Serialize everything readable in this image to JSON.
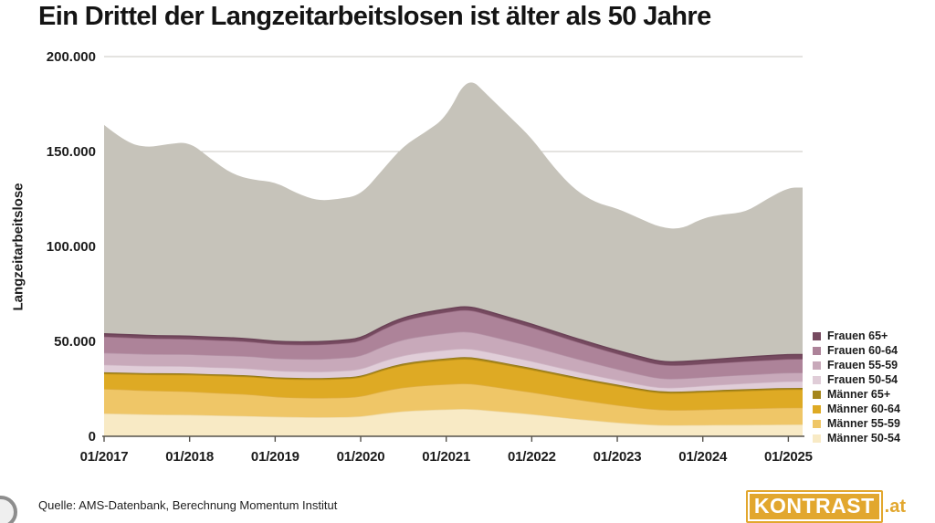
{
  "title": "Ein Drittel der Langzeitarbeitslosen ist älter als 50 Jahre",
  "source": "Quelle: AMS-Datenbank, Berechnung Momentum Institut",
  "logo": {
    "text": "KONTRAST",
    "suffix": ".at",
    "bg": "#e2a72e"
  },
  "chart_data": {
    "type": "area",
    "stacked": true,
    "title": "Ein Drittel der Langzeitarbeitslosen ist älter als 50 Jahre",
    "ylabel": "Langzeitarbeitslose",
    "xlabel": "",
    "ylim": [
      0,
      200000
    ],
    "grid": "horizontal",
    "legend_position": "right",
    "x_start": "2017-01",
    "x_months": [
      0,
      3,
      6,
      9,
      12,
      15,
      18,
      21,
      24,
      27,
      30,
      33,
      36,
      39,
      42,
      45,
      48,
      51,
      54,
      57,
      60,
      63,
      66,
      69,
      72,
      75,
      78,
      81,
      84,
      87,
      90,
      93,
      96,
      98
    ],
    "xticks": [
      {
        "month": 0,
        "label": "01/2017"
      },
      {
        "month": 12,
        "label": "01/2018"
      },
      {
        "month": 24,
        "label": "01/2019"
      },
      {
        "month": 36,
        "label": "01/2020"
      },
      {
        "month": 48,
        "label": "01/2021"
      },
      {
        "month": 60,
        "label": "01/2022"
      },
      {
        "month": 72,
        "label": "01/2023"
      },
      {
        "month": 84,
        "label": "01/2024"
      },
      {
        "month": 96,
        "label": "01/2025"
      }
    ],
    "yticks": [
      {
        "value": 0,
        "label": "0"
      },
      {
        "value": 50000,
        "label": "50.000"
      },
      {
        "value": 100000,
        "label": "100.000"
      },
      {
        "value": 150000,
        "label": "150.000"
      },
      {
        "value": 200000,
        "label": "200.000"
      }
    ],
    "gridline_values": [
      100000,
      150000,
      200000
    ],
    "total_series": {
      "name": "Langzeitarbeitslose gesamt",
      "color": "#c6c3ba",
      "values": [
        164000,
        155000,
        152000,
        154000,
        155000,
        146000,
        138000,
        135000,
        134000,
        128000,
        124000,
        125000,
        127000,
        140000,
        153000,
        160000,
        168000,
        190000,
        179000,
        168000,
        157000,
        142000,
        130000,
        123000,
        120000,
        115000,
        110000,
        109000,
        115000,
        117000,
        118000,
        125000,
        131000,
        131000
      ]
    },
    "series": [
      {
        "name": "Männer 50-54",
        "color": "#f8eac5",
        "edge": "#eed9a6",
        "values": [
          12000,
          11800,
          11500,
          11400,
          11300,
          11000,
          10800,
          10600,
          10300,
          10100,
          10000,
          10100,
          10300,
          12000,
          13200,
          13800,
          14200,
          14500,
          13600,
          12600,
          11600,
          10400,
          9200,
          8200,
          7200,
          6400,
          5800,
          5800,
          5900,
          6000,
          6000,
          6100,
          6200,
          6200
        ]
      },
      {
        "name": "Männer 55-59",
        "color": "#efc667",
        "edge": "#dfae45",
        "values": [
          13000,
          12800,
          12600,
          12500,
          12300,
          12000,
          11700,
          11400,
          10500,
          10300,
          10200,
          10300,
          10500,
          11800,
          12600,
          13000,
          13200,
          13500,
          12900,
          12200,
          11600,
          11000,
          10400,
          9800,
          9200,
          8600,
          8100,
          8000,
          8200,
          8400,
          8600,
          8800,
          8900,
          8900
        ]
      },
      {
        "name": "Männer 60-64",
        "color": "#deaa24",
        "edge": "#c29316",
        "values": [
          8000,
          8200,
          8400,
          8600,
          8800,
          9000,
          9200,
          9300,
          9500,
          9600,
          9700,
          9800,
          10000,
          11000,
          11800,
          12300,
          12700,
          13000,
          12700,
          12300,
          11900,
          11400,
          10900,
          10400,
          10000,
          9400,
          8800,
          8900,
          9100,
          9200,
          9400,
          9500,
          9600,
          9600
        ]
      },
      {
        "name": "Männer 65+",
        "color": "#a5861c",
        "edge": "#8f7413",
        "values": [
          700,
          700,
          700,
          700,
          700,
          700,
          700,
          700,
          700,
          700,
          700,
          700,
          750,
          800,
          850,
          900,
          950,
          1000,
          1000,
          950,
          900,
          850,
          850,
          800,
          800,
          800,
          800,
          800,
          800,
          800,
          800,
          800,
          800,
          800
        ]
      },
      {
        "name": "Frauen 50-54",
        "color": "#e0cdd8",
        "edge": "#cfb6c5",
        "values": [
          4000,
          3900,
          3900,
          3800,
          3800,
          3700,
          3700,
          3600,
          3500,
          3500,
          3400,
          3500,
          3600,
          4000,
          4300,
          4400,
          4500,
          4500,
          4200,
          3900,
          3600,
          3300,
          3000,
          2700,
          2400,
          2200,
          2000,
          2200,
          2600,
          2900,
          3100,
          3300,
          3500,
          3500
        ]
      },
      {
        "name": "Frauen 55-59",
        "color": "#c8a9ba",
        "edge": "#b593a7",
        "values": [
          6300,
          6300,
          6200,
          6200,
          6300,
          6300,
          6400,
          6400,
          6500,
          6500,
          6600,
          6700,
          6900,
          7700,
          8300,
          8600,
          8800,
          9000,
          8600,
          8200,
          7800,
          7300,
          6800,
          6300,
          5800,
          5300,
          4800,
          4600,
          4500,
          4500,
          4500,
          4500,
          4500,
          4500
        ]
      },
      {
        "name": "Frauen 60-64",
        "color": "#ad8399",
        "edge": "#95687f",
        "values": [
          8500,
          8400,
          8300,
          8200,
          8100,
          8000,
          7900,
          7700,
          7500,
          7500,
          7600,
          7700,
          7900,
          9000,
          9900,
          10500,
          11000,
          11500,
          11000,
          10500,
          10000,
          9500,
          9000,
          8500,
          8000,
          7600,
          7200,
          7000,
          7000,
          7000,
          7100,
          7100,
          7200,
          7200
        ]
      },
      {
        "name": "Frauen 65+",
        "color": "#764a60",
        "edge": "#6a4156",
        "values": [
          1500,
          1500,
          1500,
          1500,
          1500,
          1500,
          1500,
          1500,
          1500,
          1500,
          1600,
          1600,
          1600,
          1600,
          1700,
          1700,
          1700,
          1700,
          1700,
          1700,
          1700,
          1700,
          1700,
          1700,
          1800,
          1800,
          1800,
          1900,
          2000,
          2100,
          2200,
          2300,
          2400,
          2400
        ]
      }
    ],
    "legend": {
      "items": [
        {
          "label": "Frauen 65+",
          "color": "#764a60"
        },
        {
          "label": "Frauen 60-64",
          "color": "#ad8399"
        },
        {
          "label": "Frauen 55-59",
          "color": "#c8a9ba"
        },
        {
          "label": "Frauen 50-54",
          "color": "#e0cdd8"
        },
        {
          "label": "Männer 65+",
          "color": "#a5861c"
        },
        {
          "label": "Männer 60-64",
          "color": "#deaa24"
        },
        {
          "label": "Männer 55-59",
          "color": "#efc667"
        },
        {
          "label": "Männer 50-54",
          "color": "#f8eac5"
        }
      ]
    }
  }
}
